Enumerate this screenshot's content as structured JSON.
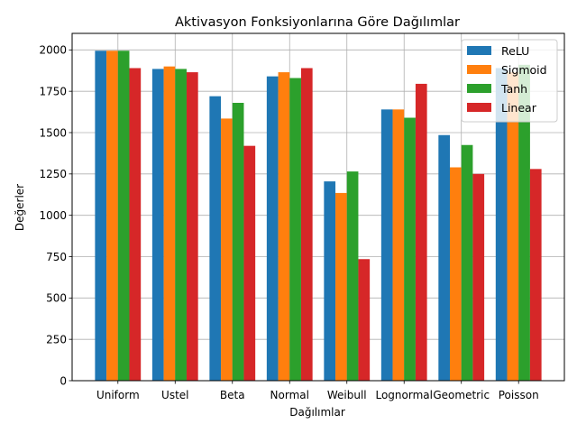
{
  "chart_data": {
    "type": "bar",
    "title": "Aktivasyon Fonksiyonlarına Göre Dağılımlar",
    "xlabel": "Dağılımlar",
    "ylabel": "Değerler",
    "ylim": [
      0,
      2100
    ],
    "yticks": [
      0,
      250,
      500,
      750,
      1000,
      1250,
      1500,
      1750,
      2000
    ],
    "grid": true,
    "legend_position": "top-right",
    "categories": [
      "Uniform",
      "Ustel",
      "Beta",
      "Normal",
      "Weibull",
      "Lognormal",
      "Geometric",
      "Poisson"
    ],
    "series": [
      {
        "name": "ReLU",
        "color": "#1f77b4",
        "values": [
          1995,
          1885,
          1720,
          1840,
          1205,
          1640,
          1485,
          1890
        ]
      },
      {
        "name": "Sigmoid",
        "color": "#ff7f0e",
        "values": [
          1995,
          1900,
          1585,
          1865,
          1135,
          1640,
          1290,
          1865
        ]
      },
      {
        "name": "Tanh",
        "color": "#2ca02c",
        "values": [
          1995,
          1885,
          1680,
          1830,
          1265,
          1590,
          1425,
          1910
        ]
      },
      {
        "name": "Linear",
        "color": "#d62728",
        "values": [
          1890,
          1865,
          1420,
          1890,
          735,
          1795,
          1250,
          1280
        ]
      }
    ]
  }
}
